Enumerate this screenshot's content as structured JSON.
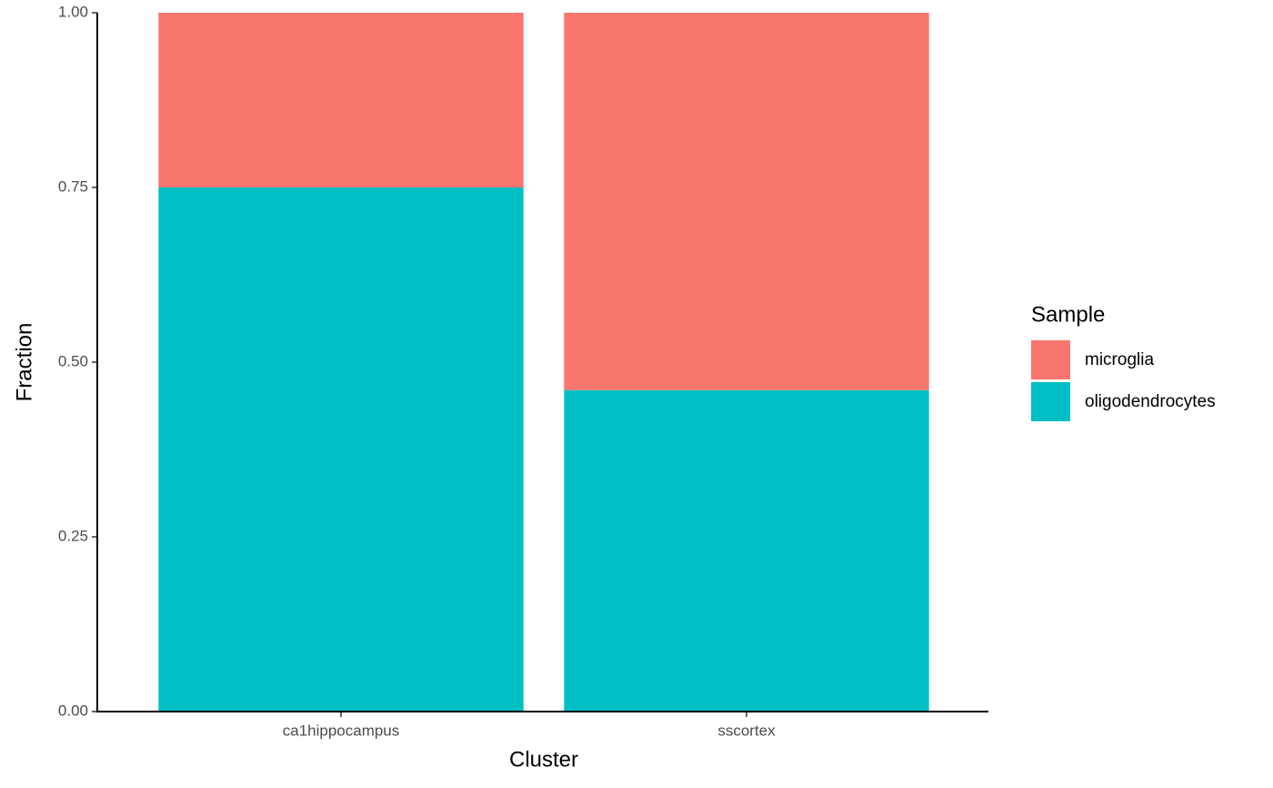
{
  "chart_data": {
    "type": "stacked_bar",
    "categories": [
      "ca1hippocampus",
      "sscortex"
    ],
    "series": [
      {
        "name": "microglia",
        "color": "#f8766d",
        "values": [
          0.25,
          0.54
        ]
      },
      {
        "name": "oligodendrocytes",
        "color": "#00bfc4",
        "values": [
          0.75,
          0.46
        ]
      }
    ],
    "x_label": "Cluster",
    "y_label": "Fraction",
    "legend_title": "Sample",
    "ylim": [
      0,
      1
    ],
    "yticks": [
      {
        "value": 0,
        "label": "0.00"
      },
      {
        "value": 0.25,
        "label": "0.25"
      },
      {
        "value": 0.5,
        "label": "0.50"
      },
      {
        "value": 0.75,
        "label": "0.75"
      },
      {
        "value": 1,
        "label": "1.00"
      }
    ],
    "legend_position": "right"
  }
}
